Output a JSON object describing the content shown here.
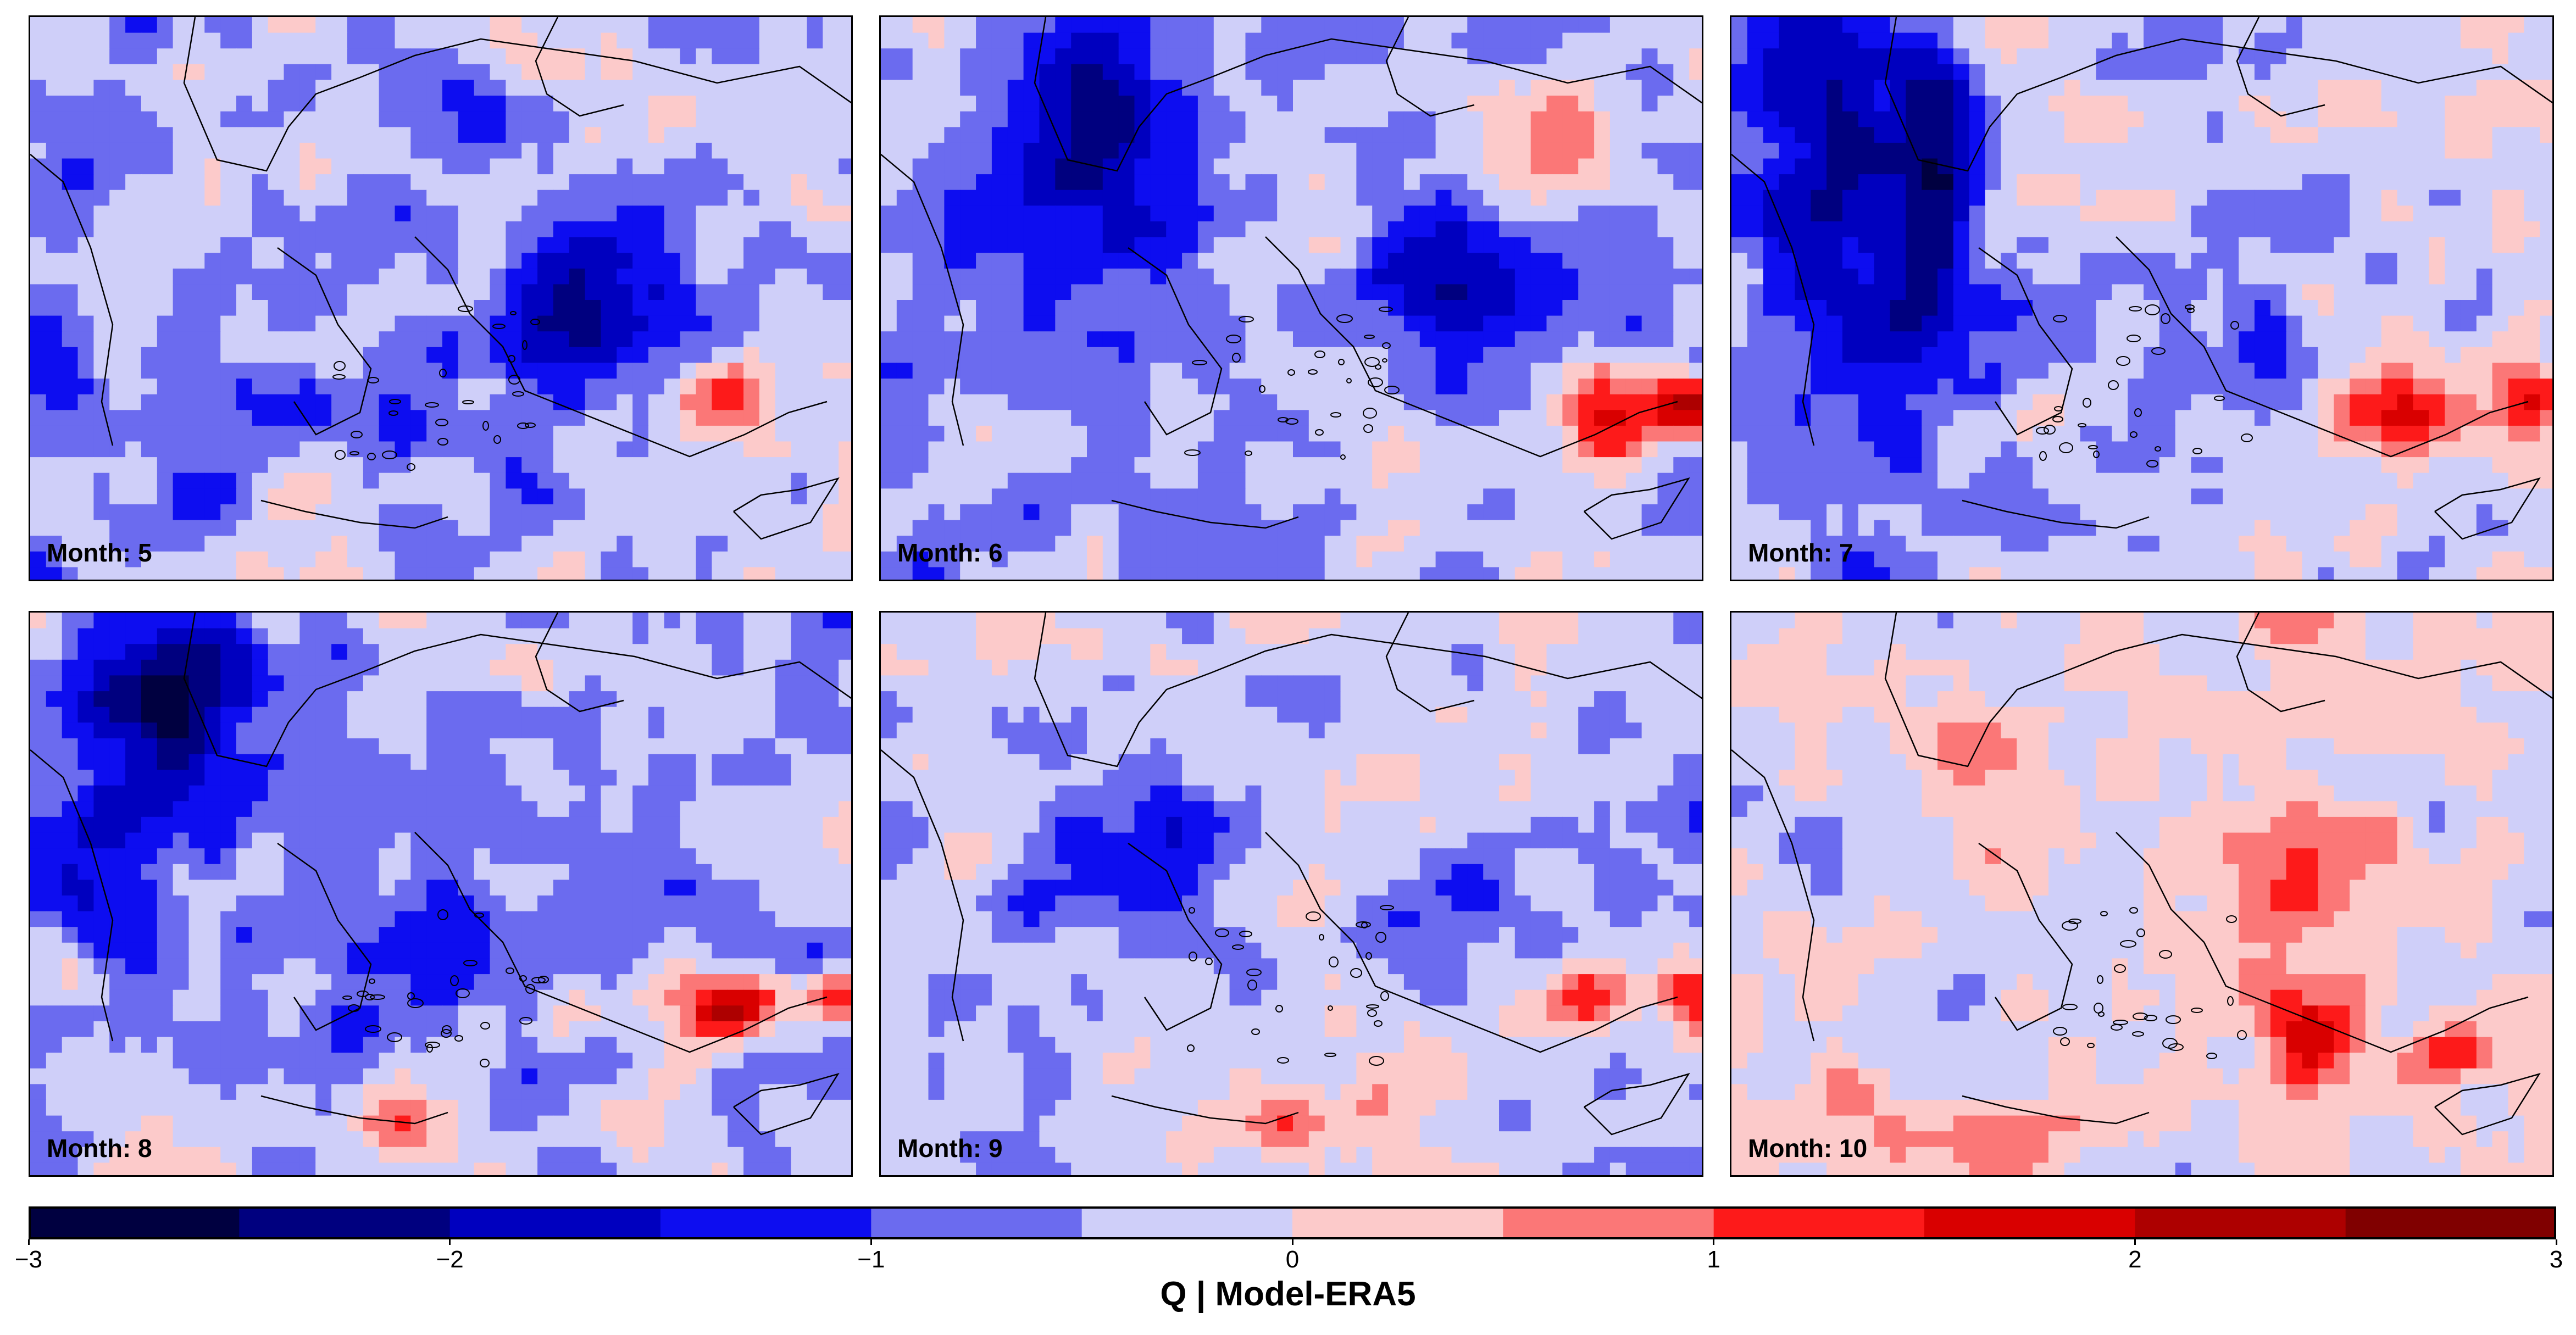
{
  "panels": [
    {
      "label": "Month: 5"
    },
    {
      "label": "Month: 6"
    },
    {
      "label": "Month: 7"
    },
    {
      "label": "Month: 8"
    },
    {
      "label": "Month: 9"
    },
    {
      "label": "Month: 10"
    }
  ],
  "colorbar": {
    "title": "Q | Model-ERA5",
    "range": [
      -3,
      3
    ],
    "bin_width": 0.5,
    "ticks": [
      "−3",
      "−2",
      "−1",
      "0",
      "1",
      "2",
      "3"
    ],
    "colors": [
      "#000040",
      "#00007f",
      "#0000bf",
      "#0d0df0",
      "#6b6bef",
      "#cfcff9",
      "#fccaca",
      "#fb7777",
      "#fd1a1a",
      "#d90000",
      "#ad0000",
      "#800000"
    ]
  },
  "colors": {
    "background_class": "#cfcff9",
    "border": "#000000"
  }
}
